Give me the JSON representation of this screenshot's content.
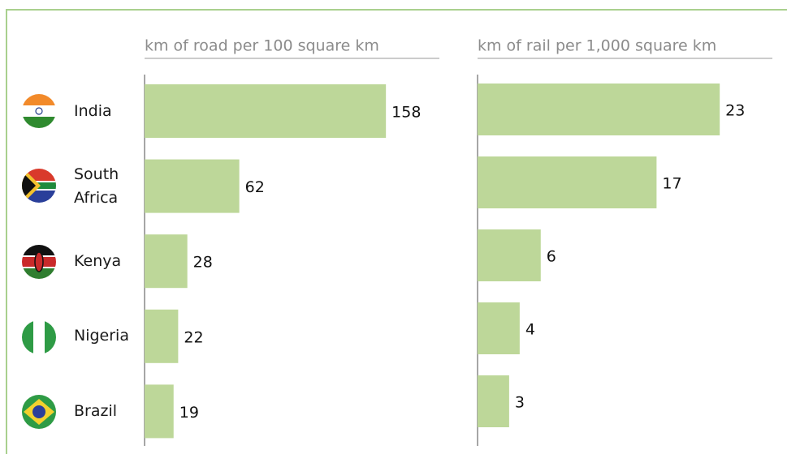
{
  "chart_data": [
    {
      "type": "hbar",
      "title": "km of road per 100 square km",
      "categories": [
        "India",
        "South Africa",
        "Kenya",
        "Nigeria",
        "Brazil"
      ],
      "values": [
        158,
        62,
        28,
        22,
        19
      ],
      "color": "#bdd799",
      "xlim": [
        0,
        193
      ]
    },
    {
      "type": "hbar",
      "title": "km of rail per 1,000 square km",
      "values": [
        23,
        17,
        6,
        4,
        3
      ],
      "color": "#bdd799",
      "xlim": [
        0,
        28
      ]
    }
  ]
}
